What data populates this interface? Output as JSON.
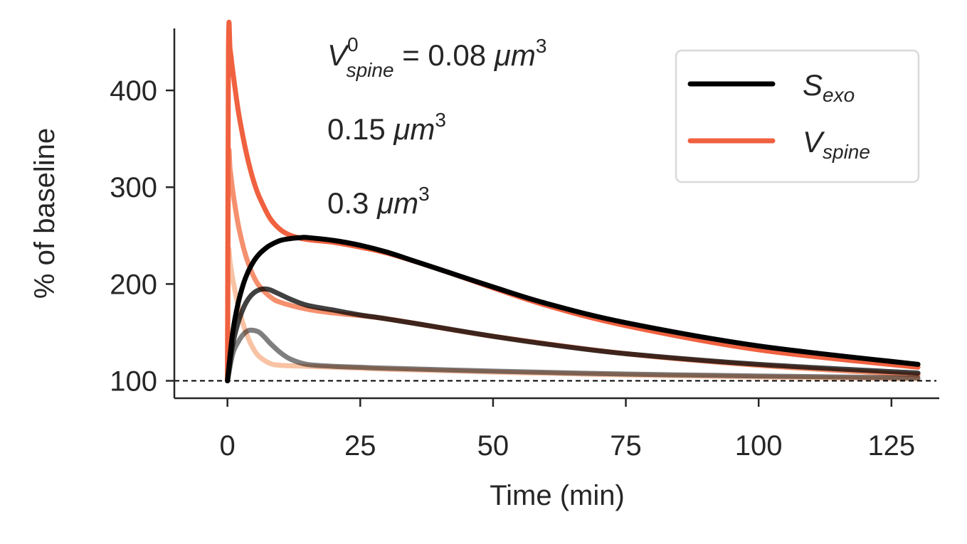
{
  "chart_data": {
    "type": "line",
    "title": "",
    "xlabel": "Time (min)",
    "ylabel": "% of baseline",
    "xlim": [
      -10,
      134
    ],
    "ylim": [
      82,
      464
    ],
    "xticks": [
      0,
      25,
      50,
      75,
      100,
      125
    ],
    "yticks": [
      100,
      200,
      300,
      400
    ],
    "baseline": 100,
    "grid": false,
    "legend": {
      "placement": "top-right",
      "entries": [
        {
          "base": "S",
          "sub": "exo",
          "color": "#000000"
        },
        {
          "base": "V",
          "sub": "spine",
          "color": "#f0613f"
        }
      ]
    },
    "annotations": [
      {
        "id": "v008",
        "base": "V",
        "sup": "0",
        "sub": "spine",
        "rest": " = 0.08 ",
        "unit": "μm",
        "power": "3"
      },
      {
        "id": "v015",
        "value": "0.15 ",
        "unit": "μm",
        "power": "3"
      },
      {
        "id": "v03",
        "value": "0.3 ",
        "unit": "μm",
        "power": "3"
      }
    ],
    "series": [
      {
        "group": "v_spine",
        "volume": 0.3,
        "color": "#f8c2a4",
        "opacity": 1.0,
        "x": [
          0,
          0.2,
          0.5,
          1,
          2,
          3,
          4,
          5,
          6,
          8,
          10,
          15,
          20,
          30,
          50,
          75,
          100,
          130
        ],
        "y": [
          100,
          228,
          222,
          205,
          178,
          158,
          143,
          132,
          125,
          118,
          116,
          115,
          114,
          112,
          109,
          106,
          104,
          102
        ]
      },
      {
        "group": "v_spine",
        "volume": 0.15,
        "color": "#f5906e",
        "opacity": 1.0,
        "x": [
          0,
          0.2,
          0.5,
          1,
          2,
          3,
          4,
          5,
          6,
          8,
          10,
          15,
          20,
          30,
          50,
          75,
          100,
          130
        ],
        "y": [
          100,
          323,
          318,
          296,
          262,
          238,
          220,
          207,
          198,
          187,
          181,
          174,
          170,
          164,
          146,
          128,
          116,
          106
        ]
      },
      {
        "group": "v_spine",
        "volume": 0.08,
        "color": "#f0613f",
        "opacity": 1.0,
        "x": [
          0,
          0.2,
          0.5,
          1,
          2,
          3,
          4,
          5,
          6,
          8,
          10,
          12,
          15,
          20,
          25,
          30,
          40,
          50,
          60,
          75,
          100,
          130
        ],
        "y": [
          100,
          445,
          442,
          420,
          380,
          350,
          325,
          305,
          290,
          268,
          256,
          250,
          246,
          243,
          238,
          232,
          215,
          196,
          178,
          157,
          132,
          114
        ]
      },
      {
        "group": "s_exo",
        "volume": 0.3,
        "color": "#000000",
        "opacity": 0.5,
        "x": [
          0,
          1,
          2,
          3,
          4,
          5,
          6,
          7,
          8,
          10,
          12,
          15,
          20,
          25,
          30,
          50,
          75,
          100,
          130
        ],
        "y": [
          100,
          128,
          140,
          148,
          152,
          152,
          150,
          145,
          139,
          129,
          122,
          117,
          115,
          114,
          113,
          110,
          107,
          105,
          103
        ]
      },
      {
        "group": "s_exo",
        "volume": 0.15,
        "color": "#000000",
        "opacity": 0.75,
        "x": [
          0,
          1,
          2,
          3,
          4,
          5,
          6,
          7,
          8,
          10,
          12,
          15,
          20,
          25,
          30,
          40,
          50,
          60,
          75,
          100,
          130
        ],
        "y": [
          100,
          138,
          160,
          175,
          185,
          191,
          194,
          195,
          194,
          189,
          184,
          178,
          173,
          168,
          164,
          155,
          146,
          138,
          128,
          117,
          108
        ]
      },
      {
        "group": "s_exo",
        "volume": 0.08,
        "color": "#000000",
        "opacity": 1.0,
        "x": [
          0,
          1,
          2,
          3,
          4,
          5,
          6,
          7,
          8,
          10,
          12,
          14,
          15,
          20,
          25,
          30,
          35,
          40,
          50,
          60,
          75,
          100,
          130
        ],
        "y": [
          100,
          150,
          180,
          200,
          214,
          224,
          231,
          236,
          240,
          245,
          247,
          248,
          248,
          245,
          240,
          233,
          224,
          215,
          197,
          180,
          160,
          136,
          117
        ]
      }
    ]
  }
}
